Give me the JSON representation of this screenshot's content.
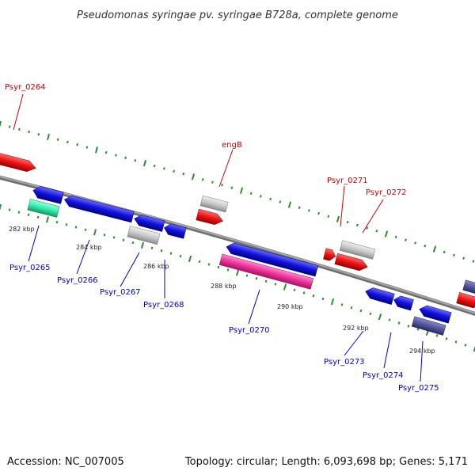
{
  "title": "Pseudomonas syringae pv. syringae B728a, complete genome",
  "footer": {
    "accession": "Accession: NC_007005",
    "summary": "Topology: circular; Length: 6,093,698 bp; Genes: 5,171"
  },
  "colors": {
    "forward_label": "#cc0000",
    "reverse_label": "#0000cc",
    "backbone": "#808080",
    "tick": "#2e8b2e",
    "red_feature": "#ee1111",
    "blue_feature": "#1111dd",
    "gray_feature": "#c8c8c8",
    "green_feature": "#33eeaa",
    "magenta_feature": "#ee3399",
    "purple_feature": "#55559a"
  },
  "labels": {
    "psyr_0264": "Psyr_0264",
    "engB": "engB",
    "psyr_0271": "Psyr_0271",
    "psyr_0272": "Psyr_0272",
    "psyr_0265": "Psyr_0265",
    "psyr_0266": "Psyr_0266",
    "psyr_0267": "Psyr_0267",
    "psyr_0268": "Psyr_0268",
    "psyr_0270": "Psyr_0270",
    "psyr_0273": "Psyr_0273",
    "psyr_0274": "Psyr_0274",
    "psyr_0275": "Psyr_0275"
  },
  "kbp_labels": {
    "k282": "282 kbp",
    "k284": "284 kbp",
    "k286": "286 kbp",
    "k288": "288 kbp",
    "k290": "290 kbp",
    "k292": "292 kbp",
    "k294": "294 kbp"
  }
}
